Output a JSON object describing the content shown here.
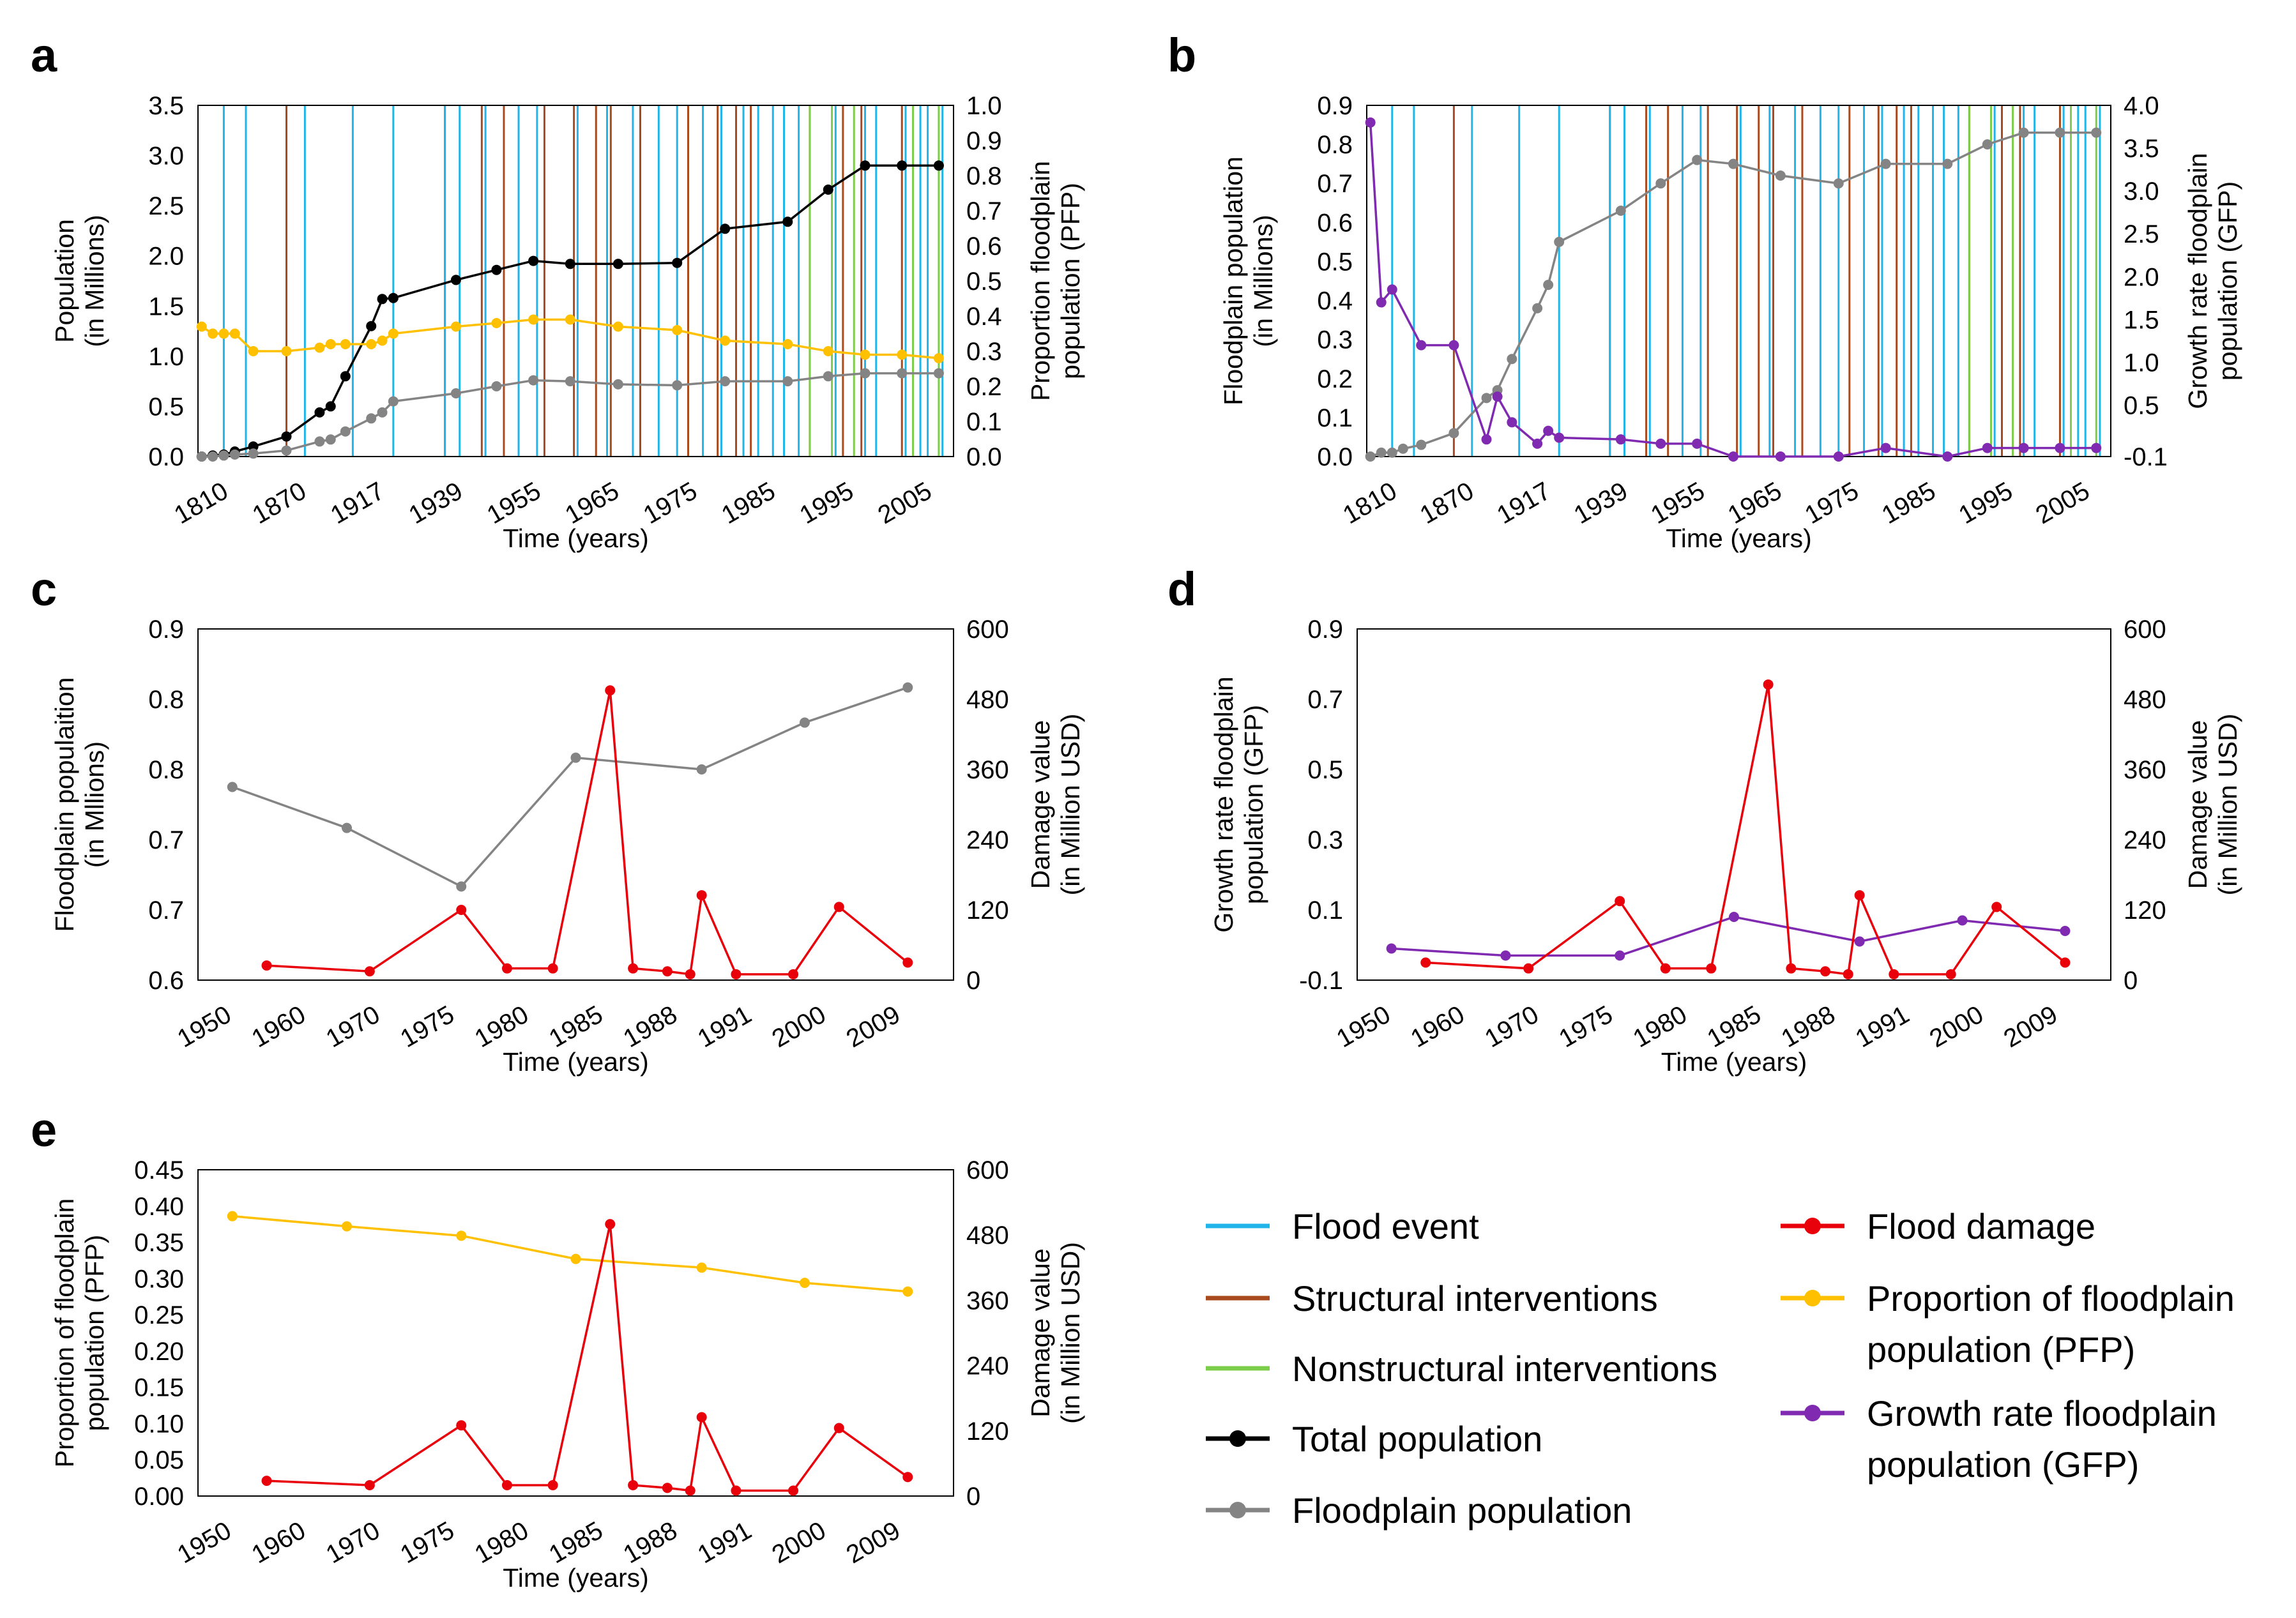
{
  "colors": {
    "flood_event": "#1fb5e8",
    "structural": "#a84a1e",
    "nonstructural": "#7ccd4a",
    "total_population": "#000000",
    "floodplain_population": "#848484",
    "flood_damage": "#e8000b",
    "pfp": "#ffc000",
    "gfp": "#7f2ab0"
  },
  "legend": {
    "items": [
      {
        "key": "flood_event",
        "label": "Flood event",
        "kind": "line"
      },
      {
        "key": "structural",
        "label": "Structural interventions",
        "kind": "line"
      },
      {
        "key": "nonstructural",
        "label": "Nonstructural interventions",
        "kind": "line"
      },
      {
        "key": "total_population",
        "label": "Total population",
        "kind": "marker"
      },
      {
        "key": "floodplain_population",
        "label": "Floodplain population",
        "kind": "marker"
      },
      {
        "key": "flood_damage",
        "label": "Flood damage",
        "kind": "marker"
      },
      {
        "key": "pfp",
        "label": "Proportion of floodplain",
        "label2": "population (PFP)",
        "kind": "marker"
      },
      {
        "key": "gfp",
        "label": "Growth rate floodplain",
        "label2": "population (GFP)",
        "kind": "marker"
      }
    ]
  },
  "chart_data": [
    {
      "id": "a",
      "panel_label": "a",
      "type": "line",
      "xlabel": "Time (years)",
      "ylabel": [
        "Population",
        "(in Millions)"
      ],
      "y2label": [
        "Proportion floodplain",
        "population (PFP)"
      ],
      "xlim": [
        1810,
        2015
      ],
      "ylim": [
        0,
        3.5
      ],
      "y_ticks": [
        "0.0",
        "0.5",
        "1.0",
        "1.5",
        "2.0",
        "2.5",
        "3.0",
        "3.5"
      ],
      "y2lim": [
        0,
        1
      ],
      "y2_ticks": [
        "0.0",
        "0.1",
        "0.2",
        "0.3",
        "0.4",
        "0.5",
        "0.6",
        "0.7",
        "0.8",
        "0.9",
        "1.0"
      ],
      "x_tick_labels": [
        "1810",
        "1870",
        "1917",
        "1939",
        "1955",
        "1965",
        "1975",
        "1985",
        "1995",
        "2005"
      ],
      "events": {
        "flood_event": [
          1817,
          1823,
          1839,
          1852,
          1863,
          1877,
          1881,
          1888,
          1897,
          1902,
          1913,
          1921,
          1928,
          1935,
          1940,
          1947,
          1952,
          1958,
          1962,
          1966,
          1969,
          1973,
          1983,
          1991,
          1994,
          2002,
          2006,
          2008,
          2012
        ],
        "structural": [
          1834,
          1877,
          1887,
          1893,
          1904,
          1912,
          1918,
          1922,
          1930,
          1943,
          1951,
          1956,
          1960,
          1976,
          1985,
          1990,
          2001
        ],
        "nonstructural": [
          1976,
          1982,
          1988,
          2004,
          2011
        ]
      },
      "series": [
        {
          "name": "Total population",
          "color_key": "total_population",
          "axis": "left",
          "x": [
            1811,
            1814,
            1817,
            1820,
            1825,
            1834,
            1843,
            1846,
            1850,
            1857,
            1860,
            1863,
            1880,
            1891,
            1901,
            1911,
            1924,
            1940,
            1953,
            1970,
            1981,
            1991,
            2001,
            2011
          ],
          "y": [
            0.0,
            0.01,
            0.02,
            0.05,
            0.1,
            0.2,
            0.44,
            0.5,
            0.8,
            1.3,
            1.57,
            1.58,
            1.76,
            1.86,
            1.95,
            1.92,
            1.92,
            1.93,
            2.27,
            2.34,
            2.66,
            2.9,
            2.9,
            2.9
          ]
        },
        {
          "name": "Floodplain population",
          "color_key": "floodplain_population",
          "axis": "left",
          "x": [
            1811,
            1814,
            1817,
            1820,
            1825,
            1834,
            1843,
            1846,
            1850,
            1857,
            1860,
            1863,
            1880,
            1891,
            1901,
            1911,
            1924,
            1940,
            1953,
            1970,
            1981,
            1991,
            2001,
            2011
          ],
          "y": [
            0.0,
            0.0,
            0.01,
            0.02,
            0.03,
            0.06,
            0.15,
            0.17,
            0.25,
            0.38,
            0.44,
            0.55,
            0.63,
            0.7,
            0.76,
            0.75,
            0.72,
            0.71,
            0.75,
            0.75,
            0.8,
            0.83,
            0.83,
            0.83
          ]
        },
        {
          "name": "PFP",
          "color_key": "pfp",
          "axis": "right",
          "x": [
            1811,
            1814,
            1817,
            1820,
            1825,
            1834,
            1843,
            1846,
            1850,
            1857,
            1860,
            1863,
            1880,
            1891,
            1901,
            1911,
            1924,
            1940,
            1953,
            1970,
            1981,
            1991,
            2001,
            2011
          ],
          "y": [
            0.37,
            0.35,
            0.35,
            0.35,
            0.3,
            0.3,
            0.31,
            0.32,
            0.32,
            0.32,
            0.33,
            0.35,
            0.37,
            0.38,
            0.39,
            0.39,
            0.37,
            0.36,
            0.33,
            0.32,
            0.3,
            0.29,
            0.29,
            0.28
          ]
        }
      ]
    },
    {
      "id": "b",
      "panel_label": "b",
      "type": "line",
      "xlabel": "Time (years)",
      "ylabel": [
        "Floodplain population",
        "(in Millions)"
      ],
      "y2label": [
        "Growth rate floodplain",
        "population (GFP)"
      ],
      "xlim": [
        1810,
        2015
      ],
      "ylim": [
        0,
        0.9
      ],
      "y_ticks": [
        "0.0",
        "0.1",
        "0.2",
        "0.3",
        "0.4",
        "0.5",
        "0.6",
        "0.7",
        "0.8",
        "0.9"
      ],
      "y2lim": [
        -0.1,
        4.0
      ],
      "y2_ticks": [
        "-0.1",
        "0.5",
        "1.0",
        "1.5",
        "2.0",
        "2.5",
        "3.0",
        "3.5",
        "4.0"
      ],
      "y2_tick_values": [
        -0.1,
        0.5,
        1.0,
        1.5,
        2.0,
        2.5,
        3.0,
        3.5,
        4.0
      ],
      "x_tick_labels": [
        "1810",
        "1870",
        "1917",
        "1939",
        "1955",
        "1965",
        "1975",
        "1985",
        "1995",
        "2005"
      ],
      "events": {
        "flood_event": [
          1817,
          1823,
          1839,
          1852,
          1863,
          1877,
          1881,
          1888,
          1897,
          1902,
          1913,
          1921,
          1928,
          1935,
          1940,
          1947,
          1952,
          1958,
          1962,
          1966,
          1969,
          1973,
          1983,
          1991,
          1994,
          2002,
          2006,
          2008,
          2012
        ],
        "structural": [
          1834,
          1877,
          1887,
          1893,
          1904,
          1912,
          1918,
          1922,
          1930,
          1943,
          1951,
          1956,
          1960,
          1976,
          1985,
          1990,
          2001
        ],
        "nonstructural": [
          1976,
          1982,
          1988,
          2004,
          2011
        ]
      },
      "series": [
        {
          "name": "Floodplain population",
          "color_key": "floodplain_population",
          "axis": "left",
          "x": [
            1811,
            1814,
            1817,
            1820,
            1825,
            1834,
            1843,
            1846,
            1850,
            1857,
            1860,
            1863,
            1880,
            1891,
            1901,
            1911,
            1924,
            1940,
            1953,
            1970,
            1981,
            1991,
            2001,
            2011
          ],
          "y": [
            0.0,
            0.01,
            0.01,
            0.02,
            0.03,
            0.06,
            0.15,
            0.17,
            0.25,
            0.38,
            0.44,
            0.55,
            0.63,
            0.7,
            0.76,
            0.75,
            0.72,
            0.7,
            0.75,
            0.75,
            0.8,
            0.83,
            0.83,
            0.83
          ]
        },
        {
          "name": "GFP",
          "color_key": "gfp",
          "axis": "right",
          "x": [
            1811,
            1814,
            1817,
            1825,
            1834,
            1843,
            1846,
            1850,
            1857,
            1860,
            1863,
            1880,
            1891,
            1901,
            1911,
            1924,
            1940,
            1953,
            1970,
            1981,
            1991,
            2001,
            2011
          ],
          "y": [
            3.8,
            1.7,
            1.85,
            1.2,
            1.2,
            0.1,
            0.6,
            0.3,
            0.05,
            0.2,
            0.12,
            0.1,
            0.05,
            0.05,
            -0.1,
            -0.1,
            -0.1,
            0.0,
            -0.1,
            0.0,
            0.0,
            0.0,
            0.0
          ]
        }
      ]
    },
    {
      "id": "c",
      "panel_label": "c",
      "type": "line",
      "xlabel": "Time (years)",
      "ylabel": [
        "Floodplain populaition",
        "(in Mllions)"
      ],
      "y2label": [
        "Damage value",
        "(in Million USD)"
      ],
      "categories": [
        "1950",
        "1960",
        "1970",
        "1975",
        "1980",
        "1985",
        "1988",
        "1991",
        "2000",
        "2009"
      ],
      "ylim": [
        0.6,
        0.9
      ],
      "y_ticks": [
        "0.6",
        "0.7",
        "0.7",
        "0.8",
        "0.8",
        "0.9"
      ],
      "y2lim": [
        0,
        600
      ],
      "y2_ticks": [
        "0",
        "120",
        "240",
        "360",
        "480",
        "600"
      ],
      "series": [
        {
          "name": "Floodplain population",
          "color_key": "floodplain_population",
          "axis": "left",
          "x": [
            1950,
            1960,
            1970,
            1980,
            1991,
            2000,
            2009
          ],
          "y": [
            0.765,
            0.73,
            0.68,
            0.79,
            0.78,
            0.82,
            0.85
          ]
        },
        {
          "name": "Flood damage",
          "color_key": "flood_damage",
          "axis": "right",
          "x": [
            1953,
            1962,
            1970,
            1974,
            1978,
            1983,
            1985,
            1988,
            1990,
            1991,
            1994,
            1999,
            2003,
            2009
          ],
          "y": [
            25,
            15,
            120,
            20,
            20,
            495,
            20,
            15,
            10,
            145,
            10,
            10,
            125,
            30
          ]
        }
      ]
    },
    {
      "id": "d",
      "panel_label": "d",
      "type": "line",
      "xlabel": "Time (years)",
      "ylabel": [
        "Growth rate floodplain",
        "population (GFP)"
      ],
      "y2label": [
        "Damage value",
        "(in Million USD)"
      ],
      "categories": [
        "1950",
        "1960",
        "1970",
        "1975",
        "1980",
        "1985",
        "1988",
        "1991",
        "2000",
        "2009"
      ],
      "ylim": [
        -0.1,
        0.9
      ],
      "y_ticks": [
        "-0.1",
        "0.1",
        "0.3",
        "0.5",
        "0.7",
        "0.9"
      ],
      "y2lim": [
        0,
        600
      ],
      "y2_ticks": [
        "0",
        "120",
        "240",
        "360",
        "480",
        "600"
      ],
      "series": [
        {
          "name": "GFP",
          "color_key": "gfp",
          "axis": "left",
          "x": [
            1950,
            1960,
            1970,
            1980,
            1991,
            2000,
            2009
          ],
          "y": [
            -0.01,
            -0.03,
            -0.03,
            0.08,
            0.01,
            0.07,
            0.04
          ]
        },
        {
          "name": "Flood damage",
          "color_key": "flood_damage",
          "axis": "right",
          "x": [
            1953,
            1962,
            1970,
            1974,
            1978,
            1983,
            1985,
            1988,
            1990,
            1991,
            1994,
            1999,
            2003,
            2009
          ],
          "y": [
            30,
            20,
            135,
            20,
            20,
            505,
            20,
            15,
            10,
            145,
            10,
            10,
            125,
            30
          ]
        }
      ]
    },
    {
      "id": "e",
      "panel_label": "e",
      "type": "line",
      "xlabel": "Time (years)",
      "ylabel": [
        "Proportion of floodplain",
        "population (PFP)"
      ],
      "y2label": [
        "Damage value",
        "(in Million USD)"
      ],
      "categories": [
        "1950",
        "1960",
        "1970",
        "1975",
        "1980",
        "1985",
        "1988",
        "1991",
        "2000",
        "2009"
      ],
      "ylim": [
        0,
        0.45
      ],
      "y_ticks": [
        "0.00",
        "0.05",
        "0.10",
        "0.15",
        "0.20",
        "0.25",
        "0.30",
        "0.35",
        "0.40",
        "0.45"
      ],
      "y2lim": [
        0,
        600
      ],
      "y2_ticks": [
        "0",
        "120",
        "240",
        "360",
        "480",
        "600"
      ],
      "series": [
        {
          "name": "PFP",
          "color_key": "pfp",
          "axis": "left",
          "x": [
            1950,
            1960,
            1970,
            1980,
            1991,
            2000,
            2009
          ],
          "y": [
            0.386,
            0.372,
            0.359,
            0.327,
            0.315,
            0.294,
            0.282
          ]
        },
        {
          "name": "Flood damage",
          "color_key": "flood_damage",
          "axis": "right",
          "x": [
            1953,
            1962,
            1970,
            1974,
            1978,
            1983,
            1985,
            1988,
            1990,
            1991,
            1994,
            1999,
            2003,
            2009
          ],
          "y": [
            28,
            20,
            130,
            20,
            20,
            500,
            20,
            15,
            10,
            145,
            10,
            10,
            125,
            35
          ]
        }
      ]
    }
  ]
}
